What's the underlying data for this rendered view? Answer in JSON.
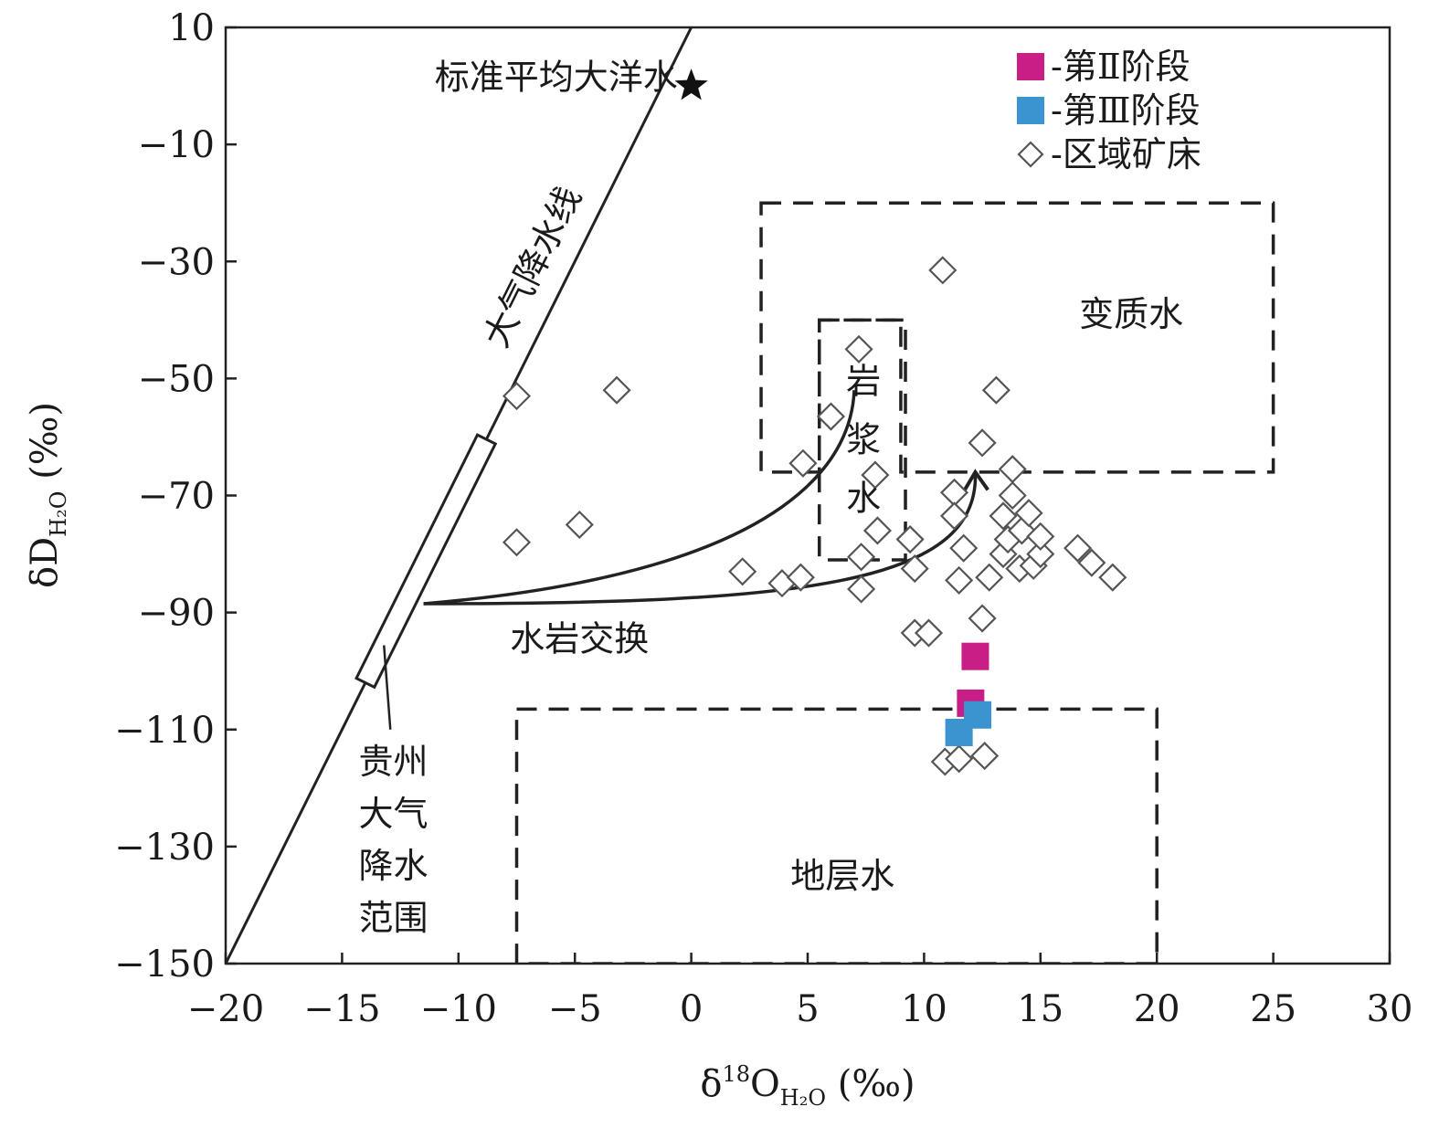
{
  "chart_data": {
    "type": "scatter",
    "x_axis": {
      "label_parts": [
        "δ",
        "18",
        "O",
        "H₂O",
        " (‰)"
      ],
      "range": [
        -20,
        30
      ],
      "ticks": [
        -20,
        -15,
        -10,
        -5,
        0,
        5,
        10,
        15,
        20,
        25,
        30
      ],
      "tick_labels": [
        "−20",
        "−15",
        "−10",
        "−5",
        "0",
        "5",
        "10",
        "15",
        "20",
        "25",
        "30"
      ]
    },
    "y_axis": {
      "label_parts": [
        "δD",
        "H₂O",
        " (‰)"
      ],
      "range": [
        -150,
        10
      ],
      "ticks": [
        10,
        -10,
        -30,
        -50,
        -70,
        -90,
        -110,
        -130,
        -150
      ],
      "tick_labels": [
        "10",
        "−10",
        "−30",
        "−50",
        "−70",
        "−90",
        "−110",
        "−130",
        "−150"
      ]
    },
    "grid": false,
    "legend_position": "top-right",
    "series": [
      {
        "name": "-第Ⅱ阶段",
        "marker": "filled-square",
        "color": "#c71f85",
        "points": [
          [
            12.2,
            -97.5
          ],
          [
            12.0,
            -105.5
          ]
        ]
      },
      {
        "name": "-第Ⅲ阶段",
        "marker": "filled-square",
        "color": "#3b94d0",
        "points": [
          [
            11.5,
            -110.5
          ],
          [
            12.3,
            -107.5
          ]
        ]
      },
      {
        "name": "-区域矿床",
        "marker": "open-diamond",
        "color": "#555555",
        "points": [
          [
            -7.5,
            -53
          ],
          [
            -7.5,
            -78
          ],
          [
            -4.8,
            -75
          ],
          [
            -3.2,
            -52
          ],
          [
            2.2,
            -83
          ],
          [
            3.9,
            -85
          ],
          [
            4.7,
            -84
          ],
          [
            4.8,
            -64.5
          ],
          [
            6.0,
            -56.5
          ],
          [
            7.2,
            -45
          ],
          [
            7.3,
            -80.5
          ],
          [
            7.3,
            -86
          ],
          [
            7.9,
            -66.5
          ],
          [
            8.0,
            -76
          ],
          [
            9.4,
            -77.5
          ],
          [
            9.6,
            -82.5
          ],
          [
            9.6,
            -93.5
          ],
          [
            10.2,
            -93.5
          ],
          [
            10.8,
            -31.5
          ],
          [
            10.9,
            -115.5
          ],
          [
            11.3,
            -69.5
          ],
          [
            11.3,
            -73.5
          ],
          [
            11.5,
            -115
          ],
          [
            11.5,
            -84.5
          ],
          [
            11.7,
            -79
          ],
          [
            12.5,
            -61
          ],
          [
            12.5,
            -91
          ],
          [
            12.6,
            -114.5
          ],
          [
            12.8,
            -84
          ],
          [
            13.1,
            -52
          ],
          [
            13.4,
            -73.5
          ],
          [
            13.4,
            -80
          ],
          [
            13.6,
            -77.5
          ],
          [
            13.8,
            -65.5
          ],
          [
            13.8,
            -70
          ],
          [
            14.1,
            -82.5
          ],
          [
            14.2,
            -76
          ],
          [
            14.5,
            -73
          ],
          [
            14.7,
            -82
          ],
          [
            15.0,
            -80
          ],
          [
            15.0,
            -77
          ],
          [
            16.6,
            -79
          ],
          [
            17.2,
            -81.5
          ],
          [
            18.1,
            -84
          ]
        ]
      },
      {
        "name": "标准平均大洋水",
        "marker": "star",
        "color": "#111111",
        "points": [
          [
            0,
            0
          ]
        ]
      }
    ],
    "meteoric_water_line": {
      "label": "大气降水线",
      "slope": 8,
      "intercept": 10
    },
    "guizhou_meteoric_range": {
      "label_lines": [
        "贵州",
        "大气",
        "降水",
        "范围"
      ],
      "x_start": -14.0,
      "x_end": -8.8
    },
    "regions": [
      {
        "name": "变质水",
        "type": "dashed-outline",
        "points": [
          [
            3,
            -20
          ],
          [
            25,
            -20
          ],
          [
            25,
            -66
          ],
          [
            9,
            -66
          ],
          [
            9,
            -40
          ],
          [
            5.5,
            -40
          ],
          [
            5.5,
            -66
          ],
          [
            3,
            -66
          ]
        ]
      },
      {
        "name": "岩浆水",
        "type": "dashed-box",
        "x": [
          5.5,
          9.2
        ],
        "y": [
          -40,
          -81
        ],
        "label_lines": [
          "岩",
          "浆",
          "水"
        ]
      },
      {
        "name": "地层水",
        "type": "dashed-box",
        "x": [
          -7.5,
          20
        ],
        "y": [
          -106.5,
          -150
        ]
      }
    ],
    "annotations": [
      {
        "text": "标准平均大洋水"
      },
      {
        "text": "水岩交换"
      }
    ],
    "exchange_curves": [
      {
        "points": [
          [
            -11.5,
            -88.5
          ],
          [
            5.0,
            -83.0
          ],
          [
            6.9,
            -62.0
          ],
          [
            7.0,
            -52.0
          ]
        ],
        "arrow": false
      },
      {
        "points": [
          [
            -11.5,
            -88.5
          ],
          [
            5.0,
            -88.5
          ],
          [
            12.4,
            -85.0
          ],
          [
            12.2,
            -66.0
          ]
        ],
        "arrow": true
      }
    ]
  }
}
